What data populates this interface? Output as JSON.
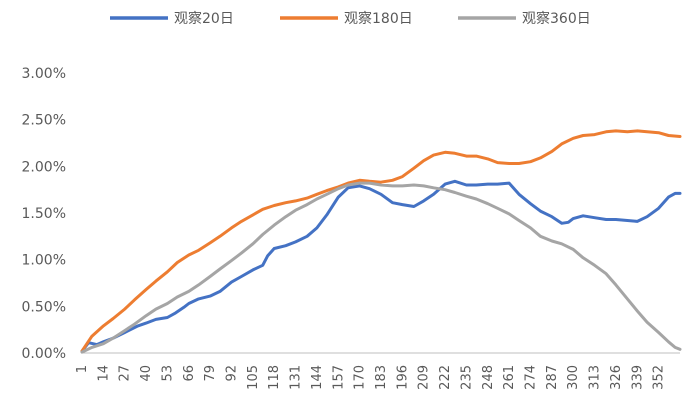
{
  "chart_data": {
    "type": "line",
    "title": "",
    "xlabel": "",
    "ylabel": "",
    "legend_position": "top",
    "grid": false,
    "xlim": [
      1,
      365
    ],
    "ylim": [
      0,
      0.03
    ],
    "y_ticks": [
      "0.00%",
      "0.50%",
      "1.00%",
      "1.50%",
      "2.00%",
      "2.50%",
      "3.00%"
    ],
    "y_tick_values": [
      0,
      0.005,
      0.01,
      0.015,
      0.02,
      0.025,
      0.03
    ],
    "x_ticks": [
      "1",
      "14",
      "27",
      "40",
      "53",
      "66",
      "79",
      "92",
      "105",
      "118",
      "131",
      "144",
      "157",
      "170",
      "183",
      "196",
      "209",
      "222",
      "235",
      "248",
      "261",
      "274",
      "287",
      "300",
      "313",
      "326",
      "339",
      "352"
    ],
    "series": [
      {
        "name": "观察20日",
        "color": "#4472C4",
        "points": [
          [
            1,
            0.0002
          ],
          [
            5,
            0.0011
          ],
          [
            10,
            0.0009
          ],
          [
            14,
            0.0012
          ],
          [
            20,
            0.0016
          ],
          [
            27,
            0.0022
          ],
          [
            35,
            0.0029
          ],
          [
            40,
            0.0032
          ],
          [
            46,
            0.0036
          ],
          [
            53,
            0.0038
          ],
          [
            58,
            0.0043
          ],
          [
            63,
            0.0049
          ],
          [
            66,
            0.0053
          ],
          [
            72,
            0.0058
          ],
          [
            79,
            0.0061
          ],
          [
            85,
            0.0066
          ],
          [
            92,
            0.0076
          ],
          [
            98,
            0.0082
          ],
          [
            105,
            0.0089
          ],
          [
            111,
            0.0094
          ],
          [
            114,
            0.0104
          ],
          [
            118,
            0.0112
          ],
          [
            125,
            0.0115
          ],
          [
            131,
            0.0119
          ],
          [
            138,
            0.0125
          ],
          [
            144,
            0.0134
          ],
          [
            150,
            0.0148
          ],
          [
            157,
            0.0167
          ],
          [
            163,
            0.0177
          ],
          [
            170,
            0.0179
          ],
          [
            176,
            0.0176
          ],
          [
            183,
            0.017
          ],
          [
            190,
            0.0161
          ],
          [
            196,
            0.0159
          ],
          [
            203,
            0.0157
          ],
          [
            209,
            0.0163
          ],
          [
            215,
            0.017
          ],
          [
            222,
            0.0181
          ],
          [
            228,
            0.0184
          ],
          [
            235,
            0.018
          ],
          [
            241,
            0.018
          ],
          [
            248,
            0.0181
          ],
          [
            254,
            0.0181
          ],
          [
            261,
            0.0182
          ],
          [
            267,
            0.017
          ],
          [
            274,
            0.016
          ],
          [
            280,
            0.0152
          ],
          [
            287,
            0.0146
          ],
          [
            293,
            0.0139
          ],
          [
            297,
            0.014
          ],
          [
            300,
            0.0144
          ],
          [
            306,
            0.0147
          ],
          [
            313,
            0.0145
          ],
          [
            320,
            0.0143
          ],
          [
            326,
            0.0143
          ],
          [
            333,
            0.0142
          ],
          [
            339,
            0.0141
          ],
          [
            345,
            0.0146
          ],
          [
            352,
            0.0155
          ],
          [
            358,
            0.0167
          ],
          [
            362,
            0.0171
          ],
          [
            365,
            0.0171
          ]
        ]
      },
      {
        "name": "观察180日",
        "color": "#ED7D31",
        "points": [
          [
            1,
            0.0002
          ],
          [
            7,
            0.0018
          ],
          [
            14,
            0.0029
          ],
          [
            20,
            0.0037
          ],
          [
            27,
            0.0047
          ],
          [
            33,
            0.0057
          ],
          [
            40,
            0.0068
          ],
          [
            46,
            0.0077
          ],
          [
            53,
            0.0087
          ],
          [
            59,
            0.0097
          ],
          [
            66,
            0.0105
          ],
          [
            72,
            0.011
          ],
          [
            79,
            0.0118
          ],
          [
            85,
            0.0125
          ],
          [
            92,
            0.0134
          ],
          [
            98,
            0.0141
          ],
          [
            105,
            0.0148
          ],
          [
            111,
            0.0154
          ],
          [
            118,
            0.0158
          ],
          [
            125,
            0.0161
          ],
          [
            131,
            0.0163
          ],
          [
            138,
            0.0166
          ],
          [
            144,
            0.017
          ],
          [
            150,
            0.0174
          ],
          [
            157,
            0.0178
          ],
          [
            163,
            0.0182
          ],
          [
            170,
            0.0185
          ],
          [
            176,
            0.0184
          ],
          [
            183,
            0.0183
          ],
          [
            190,
            0.0185
          ],
          [
            196,
            0.0189
          ],
          [
            203,
            0.0198
          ],
          [
            209,
            0.0206
          ],
          [
            215,
            0.0212
          ],
          [
            222,
            0.0215
          ],
          [
            228,
            0.0214
          ],
          [
            235,
            0.0211
          ],
          [
            241,
            0.0211
          ],
          [
            248,
            0.0208
          ],
          [
            254,
            0.0204
          ],
          [
            261,
            0.0203
          ],
          [
            267,
            0.0203
          ],
          [
            274,
            0.0205
          ],
          [
            280,
            0.0209
          ],
          [
            287,
            0.0216
          ],
          [
            293,
            0.0224
          ],
          [
            300,
            0.023
          ],
          [
            306,
            0.0233
          ],
          [
            313,
            0.0234
          ],
          [
            320,
            0.0237
          ],
          [
            326,
            0.0238
          ],
          [
            333,
            0.0237
          ],
          [
            339,
            0.0238
          ],
          [
            345,
            0.0237
          ],
          [
            352,
            0.0236
          ],
          [
            358,
            0.0233
          ],
          [
            365,
            0.0232
          ]
        ]
      },
      {
        "name": "观察360日",
        "color": "#A5A5A5",
        "points": [
          [
            1,
            0.0001
          ],
          [
            7,
            0.0006
          ],
          [
            14,
            0.001
          ],
          [
            20,
            0.0016
          ],
          [
            27,
            0.0024
          ],
          [
            33,
            0.0031
          ],
          [
            40,
            0.004
          ],
          [
            46,
            0.0047
          ],
          [
            53,
            0.0053
          ],
          [
            59,
            0.006
          ],
          [
            66,
            0.0066
          ],
          [
            72,
            0.0073
          ],
          [
            79,
            0.0082
          ],
          [
            85,
            0.009
          ],
          [
            92,
            0.0099
          ],
          [
            98,
            0.0107
          ],
          [
            105,
            0.0117
          ],
          [
            111,
            0.0127
          ],
          [
            118,
            0.0137
          ],
          [
            125,
            0.0146
          ],
          [
            131,
            0.0153
          ],
          [
            138,
            0.0159
          ],
          [
            144,
            0.0165
          ],
          [
            150,
            0.017
          ],
          [
            157,
            0.0176
          ],
          [
            163,
            0.018
          ],
          [
            170,
            0.0182
          ],
          [
            176,
            0.0182
          ],
          [
            183,
            0.018
          ],
          [
            190,
            0.0179
          ],
          [
            196,
            0.0179
          ],
          [
            203,
            0.018
          ],
          [
            209,
            0.0179
          ],
          [
            215,
            0.0177
          ],
          [
            222,
            0.0175
          ],
          [
            228,
            0.0172
          ],
          [
            235,
            0.0168
          ],
          [
            241,
            0.0165
          ],
          [
            248,
            0.016
          ],
          [
            254,
            0.0155
          ],
          [
            261,
            0.0149
          ],
          [
            267,
            0.0142
          ],
          [
            274,
            0.0134
          ],
          [
            280,
            0.0125
          ],
          [
            287,
            0.012
          ],
          [
            293,
            0.0117
          ],
          [
            300,
            0.0111
          ],
          [
            306,
            0.0102
          ],
          [
            313,
            0.0094
          ],
          [
            320,
            0.0085
          ],
          [
            326,
            0.0073
          ],
          [
            333,
            0.0058
          ],
          [
            339,
            0.0045
          ],
          [
            345,
            0.0033
          ],
          [
            352,
            0.0022
          ],
          [
            358,
            0.0012
          ],
          [
            362,
            0.0006
          ],
          [
            365,
            0.0004
          ]
        ]
      }
    ]
  }
}
